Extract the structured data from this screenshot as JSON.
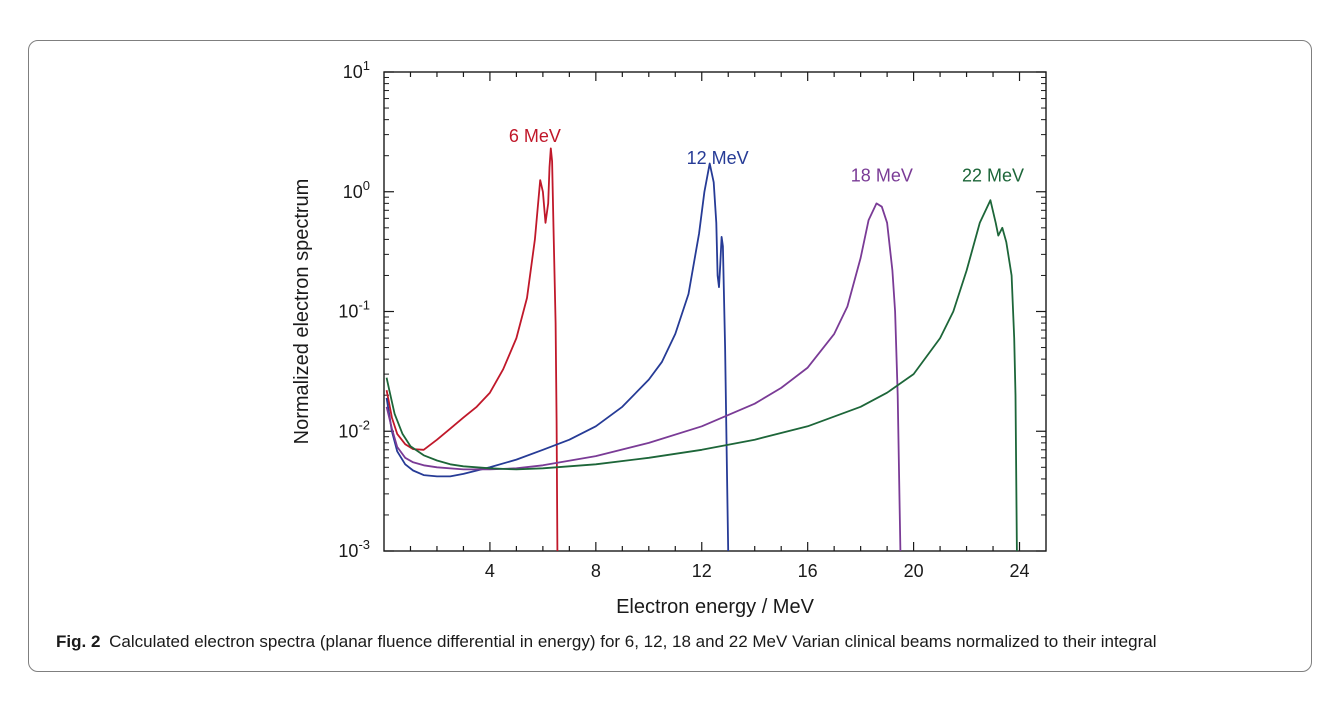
{
  "figure": {
    "caption_label": "Fig. 2",
    "caption_text": "Calculated electron spectra (planar fluence differential in energy) for 6, 12, 18 and 22 MeV Varian clinical beams normalized to their integral"
  },
  "chart_data": {
    "type": "line",
    "xlabel": "Electron energy / MeV",
    "ylabel": "Normalized electron spectrum",
    "xlim": [
      0,
      25
    ],
    "ylim": [
      0.001,
      10
    ],
    "yscale": "log",
    "grid": false,
    "x_ticks": [
      4,
      8,
      12,
      16,
      20,
      24
    ],
    "x_tick_labels": [
      "4",
      "8",
      "12",
      "16",
      "20",
      "24"
    ],
    "y_ticks": [
      0.001,
      0.01,
      0.1,
      1,
      10
    ],
    "y_tick_labels": [
      {
        "base": "10",
        "exp": "-3"
      },
      {
        "base": "10",
        "exp": "-2"
      },
      {
        "base": "10",
        "exp": "-1"
      },
      {
        "base": "10",
        "exp": "0"
      },
      {
        "base": "10",
        "exp": "1"
      }
    ],
    "series": [
      {
        "name": "6 MeV",
        "color": "#c0182a",
        "label_at": [
          5.7,
          2.6
        ],
        "points": [
          [
            0.1,
            0.022
          ],
          [
            0.3,
            0.013
          ],
          [
            0.5,
            0.0095
          ],
          [
            0.8,
            0.0078
          ],
          [
            1.1,
            0.0071
          ],
          [
            1.5,
            0.007
          ],
          [
            2.0,
            0.0085
          ],
          [
            2.5,
            0.0105
          ],
          [
            3.0,
            0.013
          ],
          [
            3.5,
            0.016
          ],
          [
            4.0,
            0.021
          ],
          [
            4.5,
            0.033
          ],
          [
            5.0,
            0.06
          ],
          [
            5.4,
            0.13
          ],
          [
            5.7,
            0.4
          ],
          [
            5.9,
            1.25
          ],
          [
            6.0,
            1.0
          ],
          [
            6.1,
            0.55
          ],
          [
            6.2,
            0.8
          ],
          [
            6.25,
            1.6
          ],
          [
            6.3,
            2.3
          ],
          [
            6.35,
            1.8
          ],
          [
            6.4,
            0.5
          ],
          [
            6.48,
            0.08
          ],
          [
            6.52,
            0.012
          ],
          [
            6.55,
            0.001
          ]
        ]
      },
      {
        "name": "12 MeV",
        "color": "#263b96",
        "label_at": [
          12.6,
          1.7
        ],
        "points": [
          [
            0.1,
            0.019
          ],
          [
            0.3,
            0.01
          ],
          [
            0.5,
            0.0068
          ],
          [
            0.8,
            0.0053
          ],
          [
            1.1,
            0.0047
          ],
          [
            1.5,
            0.0043
          ],
          [
            2.0,
            0.0042
          ],
          [
            2.5,
            0.0042
          ],
          [
            3.0,
            0.0044
          ],
          [
            4.0,
            0.005
          ],
          [
            5.0,
            0.0058
          ],
          [
            6.0,
            0.007
          ],
          [
            7.0,
            0.0085
          ],
          [
            8.0,
            0.011
          ],
          [
            9.0,
            0.016
          ],
          [
            10.0,
            0.027
          ],
          [
            10.5,
            0.038
          ],
          [
            11.0,
            0.065
          ],
          [
            11.5,
            0.14
          ],
          [
            11.9,
            0.45
          ],
          [
            12.1,
            1.0
          ],
          [
            12.3,
            1.72
          ],
          [
            12.45,
            1.2
          ],
          [
            12.55,
            0.55
          ],
          [
            12.6,
            0.2
          ],
          [
            12.65,
            0.16
          ],
          [
            12.7,
            0.25
          ],
          [
            12.75,
            0.42
          ],
          [
            12.8,
            0.35
          ],
          [
            12.88,
            0.05
          ],
          [
            12.95,
            0.005
          ],
          [
            13.0,
            0.001
          ]
        ]
      },
      {
        "name": "18 MeV",
        "color": "#7a3b96",
        "label_at": [
          18.8,
          1.22
        ],
        "points": [
          [
            0.1,
            0.016
          ],
          [
            0.3,
            0.0105
          ],
          [
            0.5,
            0.0074
          ],
          [
            0.8,
            0.006
          ],
          [
            1.1,
            0.0055
          ],
          [
            1.5,
            0.0052
          ],
          [
            2.0,
            0.005
          ],
          [
            3.0,
            0.0048
          ],
          [
            4.0,
            0.0048
          ],
          [
            5.0,
            0.0049
          ],
          [
            6.0,
            0.0052
          ],
          [
            8.0,
            0.0062
          ],
          [
            10.0,
            0.008
          ],
          [
            12.0,
            0.011
          ],
          [
            14.0,
            0.017
          ],
          [
            15.0,
            0.023
          ],
          [
            16.0,
            0.034
          ],
          [
            17.0,
            0.065
          ],
          [
            17.5,
            0.11
          ],
          [
            18.0,
            0.28
          ],
          [
            18.3,
            0.58
          ],
          [
            18.6,
            0.8
          ],
          [
            18.8,
            0.75
          ],
          [
            19.0,
            0.55
          ],
          [
            19.2,
            0.22
          ],
          [
            19.3,
            0.1
          ],
          [
            19.4,
            0.02
          ],
          [
            19.5,
            0.001
          ]
        ]
      },
      {
        "name": "22 MeV",
        "color": "#1d6639",
        "label_at": [
          23.0,
          1.22
        ],
        "points": [
          [
            0.1,
            0.028
          ],
          [
            0.2,
            0.022
          ],
          [
            0.4,
            0.014
          ],
          [
            0.7,
            0.0095
          ],
          [
            1.0,
            0.0075
          ],
          [
            1.5,
            0.0063
          ],
          [
            2.0,
            0.0057
          ],
          [
            2.5,
            0.0053
          ],
          [
            3.0,
            0.0051
          ],
          [
            4.0,
            0.0049
          ],
          [
            5.0,
            0.0048
          ],
          [
            6.0,
            0.0049
          ],
          [
            8.0,
            0.0053
          ],
          [
            10.0,
            0.006
          ],
          [
            12.0,
            0.007
          ],
          [
            14.0,
            0.0085
          ],
          [
            16.0,
            0.011
          ],
          [
            18.0,
            0.016
          ],
          [
            19.0,
            0.021
          ],
          [
            20.0,
            0.03
          ],
          [
            21.0,
            0.06
          ],
          [
            21.5,
            0.1
          ],
          [
            22.0,
            0.22
          ],
          [
            22.5,
            0.55
          ],
          [
            22.9,
            0.85
          ],
          [
            23.1,
            0.55
          ],
          [
            23.2,
            0.43
          ],
          [
            23.35,
            0.5
          ],
          [
            23.5,
            0.38
          ],
          [
            23.7,
            0.2
          ],
          [
            23.8,
            0.06
          ],
          [
            23.85,
            0.02
          ],
          [
            23.9,
            0.001
          ]
        ]
      }
    ]
  }
}
